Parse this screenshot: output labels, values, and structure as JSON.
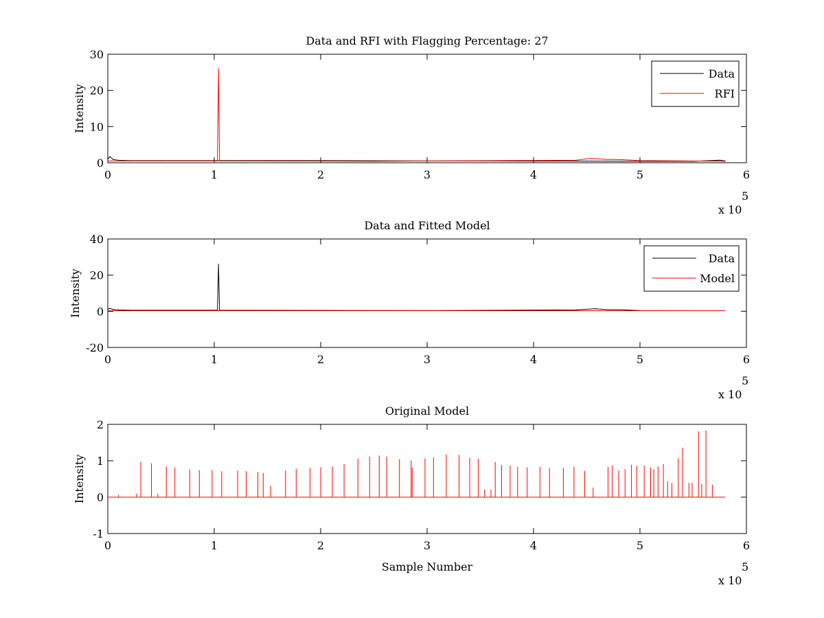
{
  "chart_data": [
    {
      "type": "line",
      "title": "Data and RFI with Flagging Percentage: 27",
      "xlabel": "",
      "ylabel": "Intensity",
      "xlim": [
        0,
        600000
      ],
      "ylim": [
        0,
        30
      ],
      "xticks": [
        "0",
        "1",
        "2",
        "3",
        "4",
        "5",
        "6"
      ],
      "yticks": [
        "0",
        "10",
        "20",
        "30"
      ],
      "x_exponent_label": "x 10",
      "x_exponent_power": "5",
      "legend_position": "top-right",
      "series": [
        {
          "name": "Data",
          "color": "#000000",
          "x": [
            0,
            2000,
            5000,
            10000,
            20000,
            50000,
            100000,
            150000,
            200000,
            250000,
            300000,
            350000,
            400000,
            450000,
            500000,
            550000,
            575000,
            580000
          ],
          "y": [
            1.0,
            1.7,
            0.9,
            0.7,
            0.6,
            0.6,
            0.6,
            0.6,
            0.6,
            0.55,
            0.5,
            0.5,
            0.45,
            0.45,
            0.4,
            0.4,
            0.7,
            0.5
          ]
        },
        {
          "name": "RFI",
          "color": "#ff0000",
          "x": [
            0,
            103000,
            104000,
            105000,
            250000,
            440000,
            453000,
            470000,
            480000,
            500000,
            580000
          ],
          "y": [
            0.5,
            0.5,
            26,
            0.5,
            0.4,
            0.7,
            1.2,
            0.9,
            0.9,
            0.6,
            0.4
          ]
        }
      ]
    },
    {
      "type": "line",
      "title": "Data and Fitted Model",
      "xlabel": "",
      "ylabel": "Intensity",
      "xlim": [
        0,
        600000
      ],
      "ylim": [
        -20,
        40
      ],
      "xticks": [
        "0",
        "1",
        "2",
        "3",
        "4",
        "5",
        "6"
      ],
      "yticks": [
        "-20",
        "0",
        "20",
        "40"
      ],
      "x_exponent_label": "x 10",
      "x_exponent_power": "5",
      "legend_position": "top-right",
      "series": [
        {
          "name": "Data",
          "color": "#000000",
          "x": [
            0,
            2000,
            5000,
            10000,
            20000,
            100000,
            103000,
            104000,
            105000,
            200000,
            300000,
            440000,
            458000,
            470000,
            482000,
            500000,
            580000
          ],
          "y": [
            1.2,
            1.6,
            1.0,
            0.8,
            0.6,
            0.6,
            0.6,
            26,
            0.6,
            0.5,
            0.4,
            0.8,
            1.4,
            0.9,
            0.9,
            0.4,
            0.3
          ]
        },
        {
          "name": "Model",
          "color": "#ff0000",
          "x": [
            0,
            580000
          ],
          "y": [
            0.3,
            0.3
          ]
        }
      ]
    },
    {
      "type": "line",
      "title": "Original Model",
      "xlabel": "Sample Number",
      "ylabel": "Intensity",
      "xlim": [
        0,
        600000
      ],
      "ylim": [
        -1,
        2
      ],
      "xticks": [
        "0",
        "1",
        "2",
        "3",
        "4",
        "5",
        "6"
      ],
      "yticks": [
        "-1",
        "0",
        "1",
        "2"
      ],
      "x_exponent_label": "x 10",
      "x_exponent_power": "5",
      "legend_position": "none",
      "series": [
        {
          "color": "#ff0000",
          "baseline": 0,
          "x_end": 580000,
          "peaks_x": [
            10000,
            27000,
            31000,
            41000,
            47000,
            55000,
            63000,
            77000,
            86000,
            98000,
            107000,
            122000,
            130000,
            141000,
            146000,
            153000,
            167000,
            177000,
            190000,
            200000,
            211000,
            222000,
            235000,
            246000,
            255000,
            262000,
            274000,
            285000,
            286000,
            298000,
            306000,
            318000,
            330000,
            340000,
            348000,
            354000,
            360000,
            364000,
            370000,
            378000,
            385000,
            394000,
            406000,
            415000,
            428000,
            438000,
            448000,
            456000,
            470000,
            474000,
            480000,
            486000,
            492000,
            497000,
            504000,
            510000,
            513000,
            517000,
            522000,
            526000,
            530000,
            536000,
            540000,
            546000,
            549000,
            555000,
            558000,
            562000,
            568000
          ],
          "peaks_y": [
            0.05,
            0.08,
            0.96,
            0.92,
            0.08,
            0.83,
            0.8,
            0.75,
            0.73,
            0.73,
            0.7,
            0.72,
            0.7,
            0.68,
            0.65,
            0.3,
            0.72,
            0.76,
            0.79,
            0.81,
            0.83,
            0.9,
            1.04,
            1.1,
            1.13,
            1.1,
            1.03,
            1.0,
            0.8,
            1.05,
            1.08,
            1.16,
            1.15,
            1.07,
            1.04,
            0.2,
            0.2,
            0.95,
            0.88,
            0.85,
            0.82,
            0.81,
            0.82,
            0.79,
            0.79,
            0.83,
            0.71,
            0.25,
            0.82,
            0.86,
            0.72,
            0.76,
            0.88,
            0.85,
            0.86,
            0.8,
            0.75,
            0.83,
            0.9,
            0.42,
            0.38,
            1.06,
            1.35,
            0.38,
            0.38,
            1.8,
            0.35,
            1.83,
            0.33
          ]
        }
      ]
    }
  ]
}
